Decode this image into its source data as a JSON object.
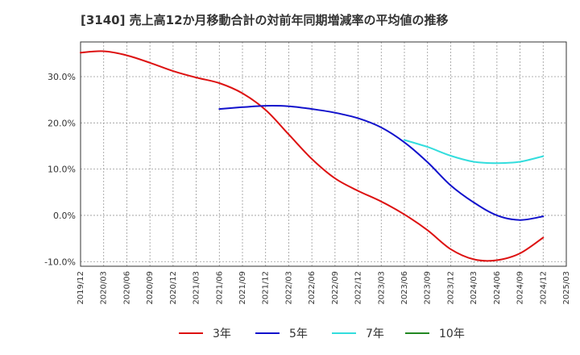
{
  "chart_data": {
    "type": "line",
    "title": "[3140]  売上高12か月移動合計の対前年同期増減率の平均値の推移",
    "xlabel": "",
    "ylabel": "",
    "x_ticks": [
      "2019/12",
      "2020/03",
      "2020/06",
      "2020/09",
      "2020/12",
      "2021/03",
      "2021/06",
      "2021/09",
      "2021/12",
      "2022/03",
      "2022/06",
      "2022/09",
      "2022/12",
      "2023/03",
      "2023/06",
      "2023/09",
      "2023/12",
      "2024/03",
      "2024/06",
      "2024/09",
      "2024/12",
      "2025/03"
    ],
    "y_ticks": [
      -10,
      0,
      10,
      20,
      30
    ],
    "y_tick_labels": [
      "-10.0%",
      "0.0%",
      "10.0%",
      "20.0%",
      "30.0%"
    ],
    "ylim": [
      -11,
      37.5
    ],
    "grid": true,
    "legend_position": "bottom",
    "series": [
      {
        "name": "3年",
        "color": "#dd1111",
        "points": [
          [
            "2019/12",
            35.2
          ],
          [
            "2020/03",
            35.5
          ],
          [
            "2020/06",
            34.6
          ],
          [
            "2020/09",
            33.0
          ],
          [
            "2020/12",
            31.2
          ],
          [
            "2021/03",
            29.8
          ],
          [
            "2021/06",
            28.6
          ],
          [
            "2021/09",
            26.4
          ],
          [
            "2021/12",
            22.8
          ],
          [
            "2022/03",
            17.5
          ],
          [
            "2022/06",
            12.2
          ],
          [
            "2022/09",
            8.0
          ],
          [
            "2022/12",
            5.3
          ],
          [
            "2023/03",
            3.0
          ],
          [
            "2023/06",
            0.2
          ],
          [
            "2023/09",
            -3.2
          ],
          [
            "2023/12",
            -7.3
          ],
          [
            "2024/03",
            -9.5
          ],
          [
            "2024/06",
            -9.7
          ],
          [
            "2024/09",
            -8.2
          ],
          [
            "2024/12",
            -4.8
          ]
        ]
      },
      {
        "name": "5年",
        "color": "#1111cc",
        "points": [
          [
            "2021/06",
            23.0
          ],
          [
            "2021/09",
            23.4
          ],
          [
            "2021/12",
            23.7
          ],
          [
            "2022/03",
            23.6
          ],
          [
            "2022/06",
            23.0
          ],
          [
            "2022/09",
            22.2
          ],
          [
            "2022/12",
            21.0
          ],
          [
            "2023/03",
            19.0
          ],
          [
            "2023/06",
            15.8
          ],
          [
            "2023/09",
            11.5
          ],
          [
            "2023/12",
            6.5
          ],
          [
            "2024/03",
            2.8
          ],
          [
            "2024/06",
            0.0
          ],
          [
            "2024/09",
            -1.0
          ],
          [
            "2024/12",
            -0.2
          ]
        ]
      },
      {
        "name": "7年",
        "color": "#33dddd",
        "points": [
          [
            "2023/06",
            16.3
          ],
          [
            "2023/09",
            14.8
          ],
          [
            "2023/12",
            12.9
          ],
          [
            "2024/03",
            11.6
          ],
          [
            "2024/06",
            11.3
          ],
          [
            "2024/09",
            11.6
          ],
          [
            "2024/12",
            12.8
          ]
        ]
      },
      {
        "name": "10年",
        "color": "#228822",
        "points": []
      }
    ]
  }
}
